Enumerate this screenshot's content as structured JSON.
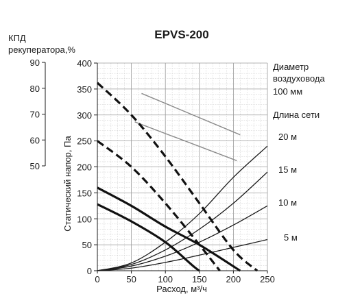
{
  "chart_data": {
    "type": "line",
    "title": "EPVS-200",
    "xlabel": "Расход, м³/ч",
    "ylabel": "Статический напор, Па",
    "xlim": [
      0,
      250
    ],
    "ylim": [
      0,
      400
    ],
    "x_ticks": [
      0,
      50,
      100,
      150,
      200,
      250
    ],
    "y_ticks": [
      0,
      50,
      100,
      150,
      200,
      250,
      300,
      350,
      400
    ],
    "grid": true,
    "secondary_axis": {
      "label_line1": "КПД",
      "label_line2": "рекуператора,%",
      "ticks": [
        "90",
        "80",
        "70",
        "60",
        "50"
      ],
      "range": [
        50,
        90
      ]
    },
    "right_labels": {
      "diameter_line1": "Диаметр",
      "diameter_line2": "воздуховода",
      "diameter_value": "100 мм",
      "network_length": "Длина сети",
      "lengths": [
        "20 м",
        "15 м",
        "10 м",
        "5 м"
      ]
    },
    "fan_curves": [
      {
        "style": "bold-dashed",
        "points": [
          [
            0,
            362
          ],
          [
            50,
            300
          ],
          [
            100,
            220
          ],
          [
            150,
            130
          ],
          [
            200,
            40
          ],
          [
            235,
            0
          ]
        ]
      },
      {
        "style": "bold-dashed",
        "points": [
          [
            0,
            250
          ],
          [
            50,
            200
          ],
          [
            100,
            130
          ],
          [
            150,
            50
          ],
          [
            180,
            0
          ]
        ]
      },
      {
        "style": "bold-solid",
        "points": [
          [
            0,
            160
          ],
          [
            50,
            125
          ],
          [
            100,
            85
          ],
          [
            150,
            50
          ],
          [
            210,
            0
          ]
        ]
      },
      {
        "style": "bold-solid",
        "points": [
          [
            0,
            128
          ],
          [
            50,
            95
          ],
          [
            100,
            55
          ],
          [
            140,
            10
          ],
          [
            150,
            0
          ]
        ]
      }
    ],
    "network_curves": [
      {
        "length": "20 м",
        "points": [
          [
            0,
            0
          ],
          [
            50,
            15
          ],
          [
            100,
            55
          ],
          [
            150,
            110
          ],
          [
            200,
            180
          ],
          [
            250,
            240
          ]
        ]
      },
      {
        "length": "15 м",
        "points": [
          [
            0,
            0
          ],
          [
            50,
            12
          ],
          [
            100,
            40
          ],
          [
            150,
            80
          ],
          [
            200,
            130
          ],
          [
            250,
            190
          ]
        ]
      },
      {
        "length": "10 м",
        "points": [
          [
            0,
            0
          ],
          [
            50,
            9
          ],
          [
            100,
            28
          ],
          [
            150,
            55
          ],
          [
            200,
            88
          ],
          [
            250,
            125
          ]
        ]
      },
      {
        "length": "5 м",
        "points": [
          [
            0,
            0
          ],
          [
            50,
            5
          ],
          [
            100,
            16
          ],
          [
            150,
            30
          ],
          [
            200,
            45
          ],
          [
            250,
            60
          ]
        ]
      }
    ],
    "efficiency_curves": [
      {
        "points": [
          [
            65,
            78
          ],
          [
            210,
            62
          ]
        ]
      },
      {
        "points": [
          [
            55,
            67
          ],
          [
            205,
            52
          ]
        ]
      }
    ]
  }
}
